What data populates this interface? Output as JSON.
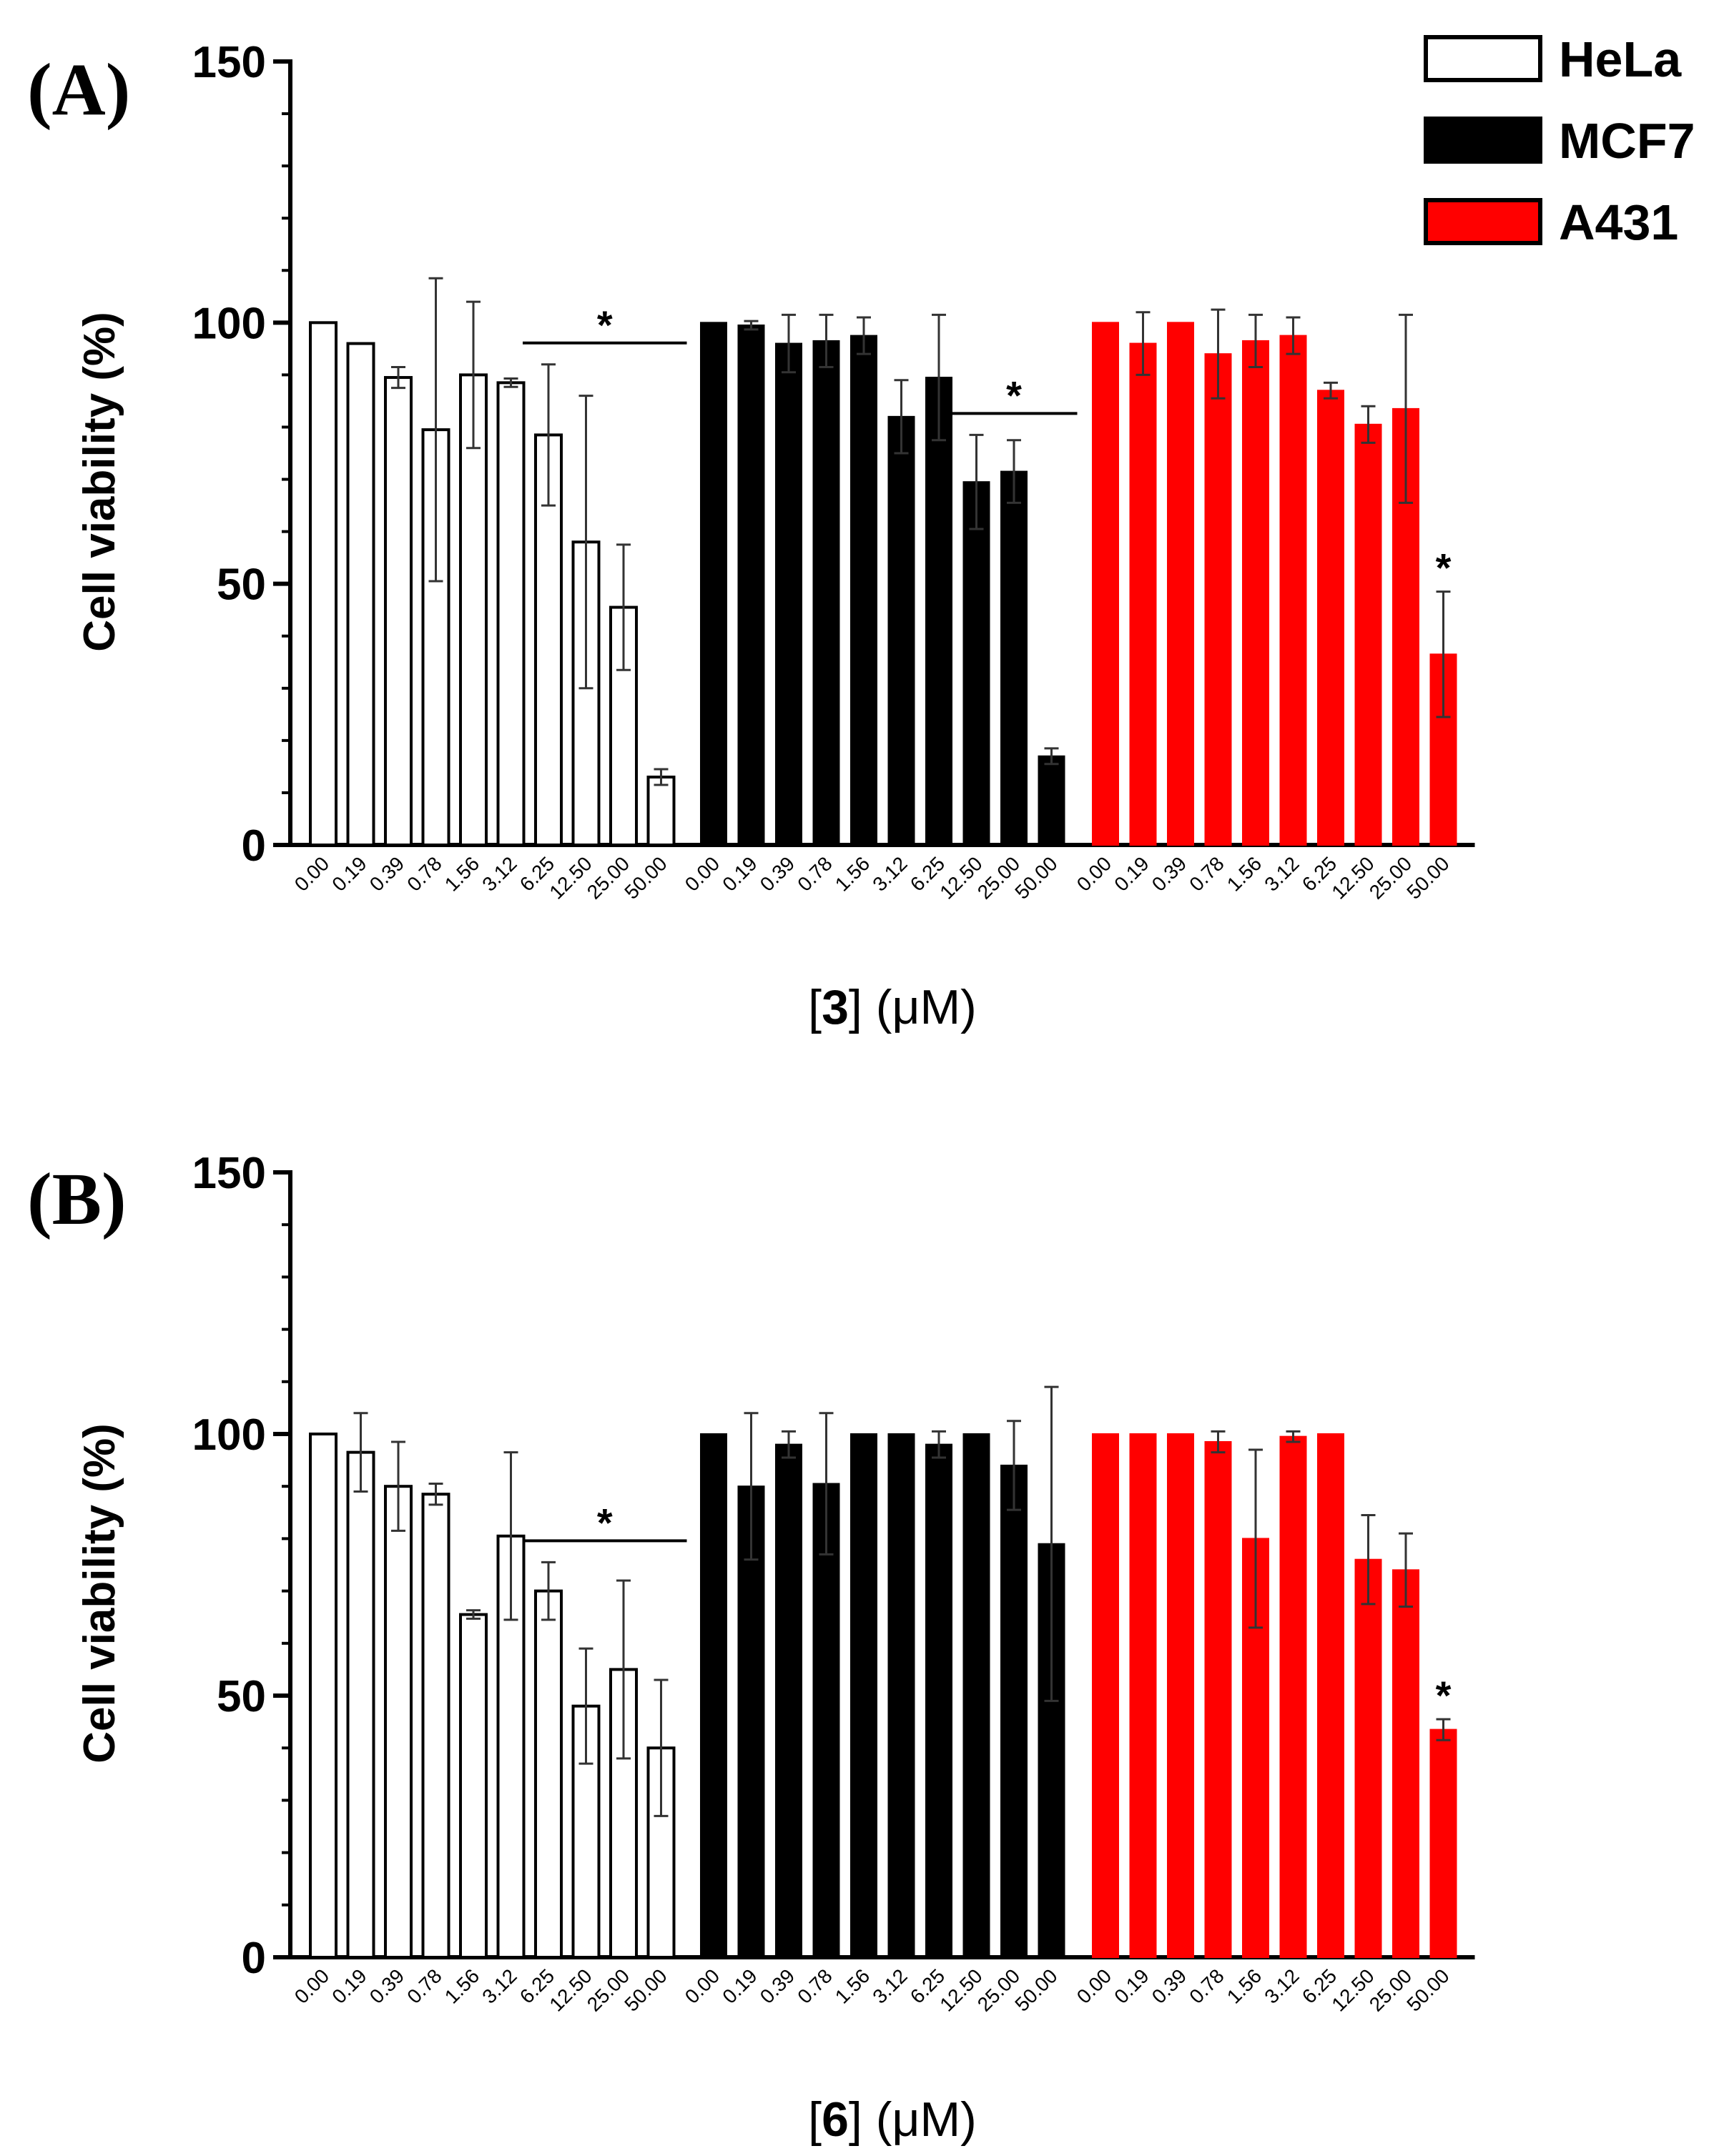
{
  "legend": [
    {
      "label": "HeLa",
      "fill": "#ffffff"
    },
    {
      "label": "MCF7",
      "fill": "#000000"
    },
    {
      "label": "A431",
      "fill": "#ff0000"
    }
  ],
  "colors": {
    "axis": "#000000",
    "bar_stroke": "#000000",
    "a431": "#ff0000"
  },
  "chart_data": [
    {
      "type": "bar",
      "panel_label": "(A)",
      "ylabel": "Cell viability (%)",
      "xlabel_prefix": "[",
      "xlabel_compound": "3",
      "xlabel_suffix": "] (μM)",
      "ylim": [
        0,
        150
      ],
      "yticks": [
        "0",
        "50",
        "100",
        "150"
      ],
      "categories": [
        "0.00",
        "0.19",
        "0.39",
        "0.78",
        "1.56",
        "3.12",
        "6.25",
        "12.50",
        "25.00",
        "50.00"
      ],
      "series": [
        {
          "name": "HeLa",
          "values": [
            100,
            96,
            89.5,
            79.5,
            90,
            88.5,
            78.5,
            58,
            45.5,
            13
          ],
          "errors": [
            0,
            0,
            2,
            29,
            14,
            0.8,
            13.5,
            28,
            12,
            1.5
          ]
        },
        {
          "name": "MCF7",
          "values": [
            100,
            99.5,
            96,
            96.5,
            97.5,
            82,
            89.5,
            69.5,
            71.5,
            17
          ],
          "errors": [
            0,
            0.8,
            5.5,
            5,
            3.5,
            7,
            12,
            9,
            6,
            1.5
          ]
        },
        {
          "name": "A431",
          "values": [
            100,
            96,
            100,
            94,
            96.5,
            97.5,
            87,
            80.5,
            83.5,
            36.5
          ],
          "errors": [
            0,
            6,
            0,
            8.5,
            5,
            3.5,
            1.5,
            3.5,
            18,
            12
          ]
        }
      ],
      "significance": [
        {
          "series": "HeLa",
          "from": "6.25",
          "to": "50.00",
          "label": "*"
        },
        {
          "series": "MCF7",
          "from": "12.50",
          "to": "50.00",
          "label": "*"
        },
        {
          "series": "A431",
          "at": "50.00",
          "label": "*"
        }
      ]
    },
    {
      "type": "bar",
      "panel_label": "(B)",
      "ylabel": "Cell viability (%)",
      "xlabel_prefix": "[",
      "xlabel_compound": "6",
      "xlabel_suffix": "] (μM)",
      "ylim": [
        0,
        150
      ],
      "yticks": [
        "0",
        "50",
        "100",
        "150"
      ],
      "categories": [
        "0.00",
        "0.19",
        "0.39",
        "0.78",
        "1.56",
        "3.12",
        "6.25",
        "12.50",
        "25.00",
        "50.00"
      ],
      "series": [
        {
          "name": "HeLa",
          "values": [
            100,
            96.5,
            90,
            88.5,
            65.5,
            80.5,
            70,
            48,
            55,
            40
          ],
          "errors": [
            0,
            7.5,
            8.5,
            2,
            0.8,
            16,
            5.5,
            11,
            17,
            13
          ]
        },
        {
          "name": "MCF7",
          "values": [
            100,
            90,
            98,
            90.5,
            100,
            100,
            98,
            100,
            94,
            79
          ],
          "errors": [
            0,
            14,
            2.5,
            13.5,
            0,
            0,
            2.5,
            0,
            8.5,
            30
          ]
        },
        {
          "name": "A431",
          "values": [
            100,
            100,
            100,
            98.5,
            80,
            99.5,
            100,
            76,
            74,
            43.5
          ],
          "errors": [
            0,
            0,
            0,
            2,
            17,
            1,
            0,
            8.5,
            7,
            2
          ]
        }
      ],
      "significance": [
        {
          "series": "HeLa",
          "from": "6.25",
          "to": "50.00",
          "label": "*"
        },
        {
          "series": "A431",
          "at": "50.00",
          "label": "*"
        }
      ]
    }
  ]
}
